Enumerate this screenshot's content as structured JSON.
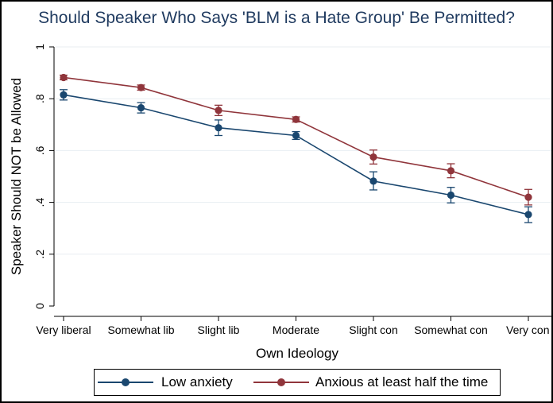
{
  "chart_data": {
    "type": "line",
    "title": "Should Speaker Who Says 'BLM is a Hate Group' Be Permitted?",
    "xlabel": "Own Ideology",
    "ylabel": "Speaker Should NOT be Allowed",
    "categories": [
      "Very liberal",
      "Somewhat lib",
      "Slight lib",
      "Moderate",
      "Slight con",
      "Somewhat con",
      "Very con"
    ],
    "ylim": [
      0,
      1
    ],
    "yticks": [
      0,
      0.2,
      0.4,
      0.6,
      0.8,
      1
    ],
    "ytick_labels": [
      "0",
      ".2",
      ".4",
      ".6",
      ".8",
      "1"
    ],
    "grid": true,
    "legend_position": "bottom",
    "series": [
      {
        "name": "Low anxiety",
        "color": "#1a476f",
        "values": [
          0.815,
          0.765,
          0.688,
          0.658,
          0.482,
          0.428,
          0.353
        ],
        "error_low": [
          0.795,
          0.745,
          0.658,
          0.643,
          0.448,
          0.398,
          0.322
        ],
        "error_high": [
          0.835,
          0.785,
          0.718,
          0.673,
          0.518,
          0.458,
          0.383
        ]
      },
      {
        "name": "Anxious at least half the time",
        "color": "#90353b",
        "values": [
          0.882,
          0.843,
          0.755,
          0.72,
          0.575,
          0.522,
          0.42
        ],
        "error_low": [
          0.873,
          0.833,
          0.735,
          0.71,
          0.548,
          0.495,
          0.39
        ],
        "error_high": [
          0.891,
          0.853,
          0.775,
          0.73,
          0.602,
          0.549,
          0.45
        ]
      }
    ]
  }
}
